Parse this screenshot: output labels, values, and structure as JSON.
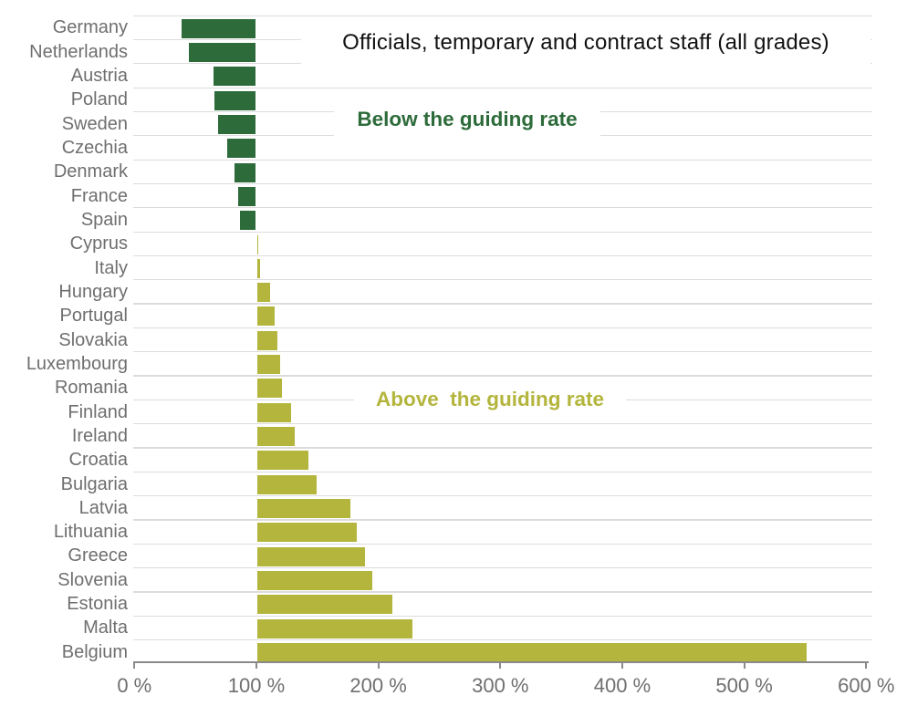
{
  "chart_data": {
    "type": "bar",
    "orientation": "horizontal",
    "title": "Officials, temporary and contract staff (all grades)",
    "xlabel": "",
    "ylabel": "",
    "unit": "%",
    "baseline_value_pct": 100,
    "x_axis": {
      "min": 0,
      "max": 600,
      "tick_values": [
        0,
        100,
        200,
        300,
        400,
        500,
        600
      ],
      "tick_labels": [
        "0 %",
        "100 %",
        "200 %",
        "300 %",
        "400 %",
        "500 %",
        "600 %"
      ]
    },
    "grid": "horizontal row separators, no vertical gridlines",
    "legend_position": "none",
    "annotations": [
      {
        "id": "below",
        "text": "Below the guiding rate",
        "color": "#2d6b3a"
      },
      {
        "id": "above",
        "text": "Above  the guiding rate",
        "color": "#b3b53d"
      }
    ],
    "series_colors": {
      "below": "#2d6b3a",
      "above": "#b3b53d"
    },
    "countries": [
      {
        "name": "Germany",
        "value_pct": 38,
        "group": "below"
      },
      {
        "name": "Netherlands",
        "value_pct": 44,
        "group": "below"
      },
      {
        "name": "Austria",
        "value_pct": 64,
        "group": "below"
      },
      {
        "name": "Poland",
        "value_pct": 65,
        "group": "below"
      },
      {
        "name": "Sweden",
        "value_pct": 68,
        "group": "below"
      },
      {
        "name": "Czechia",
        "value_pct": 75,
        "group": "below"
      },
      {
        "name": "Denmark",
        "value_pct": 81,
        "group": "below"
      },
      {
        "name": "France",
        "value_pct": 84,
        "group": "below"
      },
      {
        "name": "Spain",
        "value_pct": 86,
        "group": "below"
      },
      {
        "name": "Cyprus",
        "value_pct": 102,
        "group": "above"
      },
      {
        "name": "Italy",
        "value_pct": 104,
        "group": "above"
      },
      {
        "name": "Hungary",
        "value_pct": 112,
        "group": "above"
      },
      {
        "name": "Portugal",
        "value_pct": 116,
        "group": "above"
      },
      {
        "name": "Slovakia",
        "value_pct": 118,
        "group": "above"
      },
      {
        "name": "Luxembourg",
        "value_pct": 120,
        "group": "above"
      },
      {
        "name": "Romania",
        "value_pct": 122,
        "group": "above"
      },
      {
        "name": "Finland",
        "value_pct": 129,
        "group": "above"
      },
      {
        "name": "Ireland",
        "value_pct": 132,
        "group": "above"
      },
      {
        "name": "Croatia",
        "value_pct": 143,
        "group": "above"
      },
      {
        "name": "Bulgaria",
        "value_pct": 150,
        "group": "above"
      },
      {
        "name": "Latvia",
        "value_pct": 178,
        "group": "above"
      },
      {
        "name": "Lithuania",
        "value_pct": 183,
        "group": "above"
      },
      {
        "name": "Greece",
        "value_pct": 190,
        "group": "above"
      },
      {
        "name": "Slovenia",
        "value_pct": 196,
        "group": "above"
      },
      {
        "name": "Estonia",
        "value_pct": 212,
        "group": "above"
      },
      {
        "name": "Malta",
        "value_pct": 229,
        "group": "above"
      },
      {
        "name": "Belgium",
        "value_pct": 552,
        "group": "above"
      }
    ]
  },
  "styles": {
    "background": "#ffffff",
    "grid_color": "#dcdcdc",
    "axis_color": "#8a8a8a",
    "tick_label_color": "#6f6f6f",
    "country_label_color": "#6f6f6f",
    "title_color": "#111111",
    "below_color": "#2d6b3a",
    "above_color": "#b3b53d"
  }
}
